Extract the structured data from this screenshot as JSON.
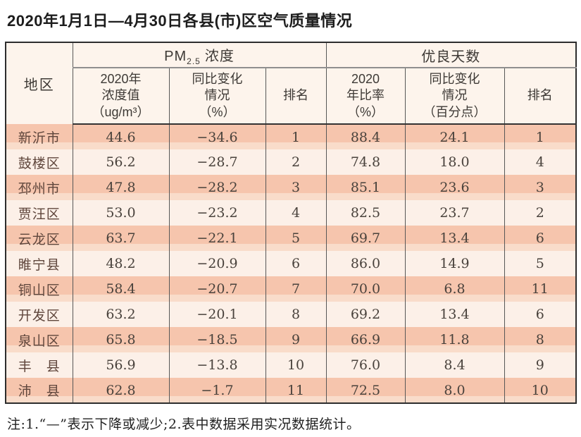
{
  "title": "2020年1月1日—4月30日各县(市)区空气质量情况",
  "note": "注:1.“—”表示下降或减少;2.表中数据采用实况数据统计。",
  "table": {
    "region_header": "地区",
    "pm_group": {
      "prefix": "PM",
      "sub": "2.5",
      "suffix": "浓度"
    },
    "days_group": "优良天数",
    "sub_headers": [
      "2020年\n浓度值\n（ug/m³）",
      "同比变化\n情况\n（%）",
      "排名",
      "2020\n年比率\n（%）",
      "同比变化\n情况\n（百分点）",
      "排名"
    ]
  },
  "chart_data": {
    "type": "table",
    "title": "2020年1月1日—4月30日各县(市)区空气质量情况",
    "column_groups": [
      "PM2.5浓度",
      "优良天数"
    ],
    "columns": [
      "地区",
      "2020年浓度值（ug/m³）",
      "同比变化情况（%）",
      "排名",
      "2020年比率（%）",
      "同比变化情况（百分点）",
      "排名"
    ],
    "rows": [
      [
        "新沂市",
        "44.6",
        "−34.6",
        "1",
        "88.4",
        "24.1",
        "1"
      ],
      [
        "鼓楼区",
        "56.2",
        "−28.7",
        "2",
        "74.8",
        "18.0",
        "4"
      ],
      [
        "邳州市",
        "47.8",
        "−28.2",
        "3",
        "85.1",
        "23.6",
        "3"
      ],
      [
        "贾汪区",
        "53.0",
        "−23.2",
        "4",
        "82.5",
        "23.7",
        "2"
      ],
      [
        "云龙区",
        "63.7",
        "−22.1",
        "5",
        "69.7",
        "13.4",
        "6"
      ],
      [
        "睢宁县",
        "48.2",
        "−20.9",
        "6",
        "86.0",
        "14.9",
        "5"
      ],
      [
        "铜山区",
        "58.4",
        "−20.7",
        "7",
        "70.0",
        "6.8",
        "11"
      ],
      [
        "开发区",
        "63.2",
        "−20.1",
        "8",
        "69.2",
        "13.4",
        "6"
      ],
      [
        "泉山区",
        "65.8",
        "−18.5",
        "9",
        "66.9",
        "11.8",
        "8"
      ],
      [
        "丰　县",
        "56.9",
        "−13.8",
        "10",
        "76.0",
        "8.4",
        "9"
      ],
      [
        "沛　县",
        "62.8",
        "−1.7",
        "11",
        "72.5",
        "8.0",
        "10"
      ]
    ]
  },
  "colors": {
    "row_stripe_salmon": "#f6c5ad",
    "row_stripe_light": "#fcf0e8",
    "header_cream": "#fdf4ec",
    "border_dark": "#2d2d2d",
    "text_dark": "#49423c"
  }
}
